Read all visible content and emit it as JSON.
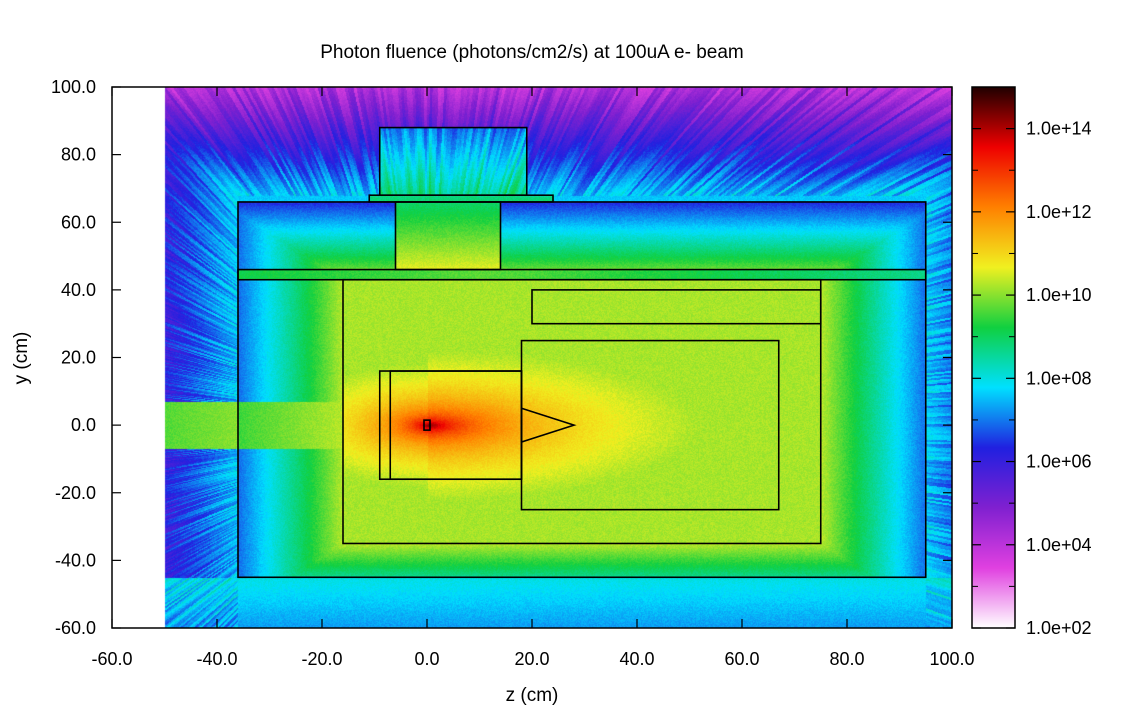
{
  "chart_data": {
    "type": "heatmap",
    "title": "Photon fluence (photons/cm2/s) at 100uA e- beam",
    "xlabel": "z (cm)",
    "ylabel": "y (cm)",
    "xlim": [
      -60.0,
      100.0
    ],
    "ylim": [
      -60.0,
      100.0
    ],
    "x_ticks": [
      "-60.0",
      "-40.0",
      "-20.0",
      "0.0",
      "20.0",
      "40.0",
      "60.0",
      "80.0",
      "100.0"
    ],
    "y_ticks": [
      "-60.0",
      "-40.0",
      "-20.0",
      "0.0",
      "20.0",
      "40.0",
      "60.0",
      "80.0",
      "100.0"
    ],
    "colorbar": {
      "scale": "log",
      "range": [
        100.0,
        1000000000000000.0
      ],
      "tick_values": [
        100.0,
        10000.0,
        1000000.0,
        100000000.0,
        10000000000.0,
        1000000000000.0,
        100000000000000.0
      ],
      "tick_labels": [
        "1.0e+02",
        "1.0e+04",
        "1.0e+06",
        "1.0e+08",
        "1.0e+10",
        "1.0e+12",
        "1.0e+14"
      ],
      "colors": [
        "#ffffff",
        "#e040e0",
        "#8020d0",
        "#2020e0",
        "#00e0ff",
        "#10d040",
        "#f0f020",
        "#ff8000",
        "#ee0000",
        "#200000"
      ]
    },
    "data_extent": {
      "z": [
        -50,
        100
      ],
      "y": [
        -60,
        100
      ]
    },
    "source": {
      "z": 0,
      "y": 0,
      "log_fluence": 14.3
    },
    "geometry_boxes": [
      {
        "z": [
          -36,
          95
        ],
        "y": [
          -45,
          66
        ]
      },
      {
        "z": [
          -16,
          75
        ],
        "y": [
          -35,
          43
        ]
      },
      {
        "z": [
          -36,
          95
        ],
        "y": [
          43,
          46
        ]
      },
      {
        "z": [
          -11,
          24
        ],
        "y": [
          66,
          68
        ]
      },
      {
        "z": [
          -9,
          19
        ],
        "y": [
          68,
          88
        ]
      },
      {
        "z": [
          -6,
          14
        ],
        "y": [
          46,
          66
        ]
      },
      {
        "z": [
          20,
          75
        ],
        "y": [
          30,
          40
        ]
      },
      {
        "z": [
          18,
          67
        ],
        "y": [
          -25,
          25
        ]
      },
      {
        "z": [
          -9,
          18
        ],
        "y": [
          -16,
          16
        ]
      },
      {
        "z": [
          -7,
          18
        ],
        "y": [
          -16,
          16
        ]
      }
    ],
    "geometry_triangle": [
      [
        18,
        5
      ],
      [
        28,
        0
      ],
      [
        18,
        -5
      ]
    ],
    "grid": false
  }
}
